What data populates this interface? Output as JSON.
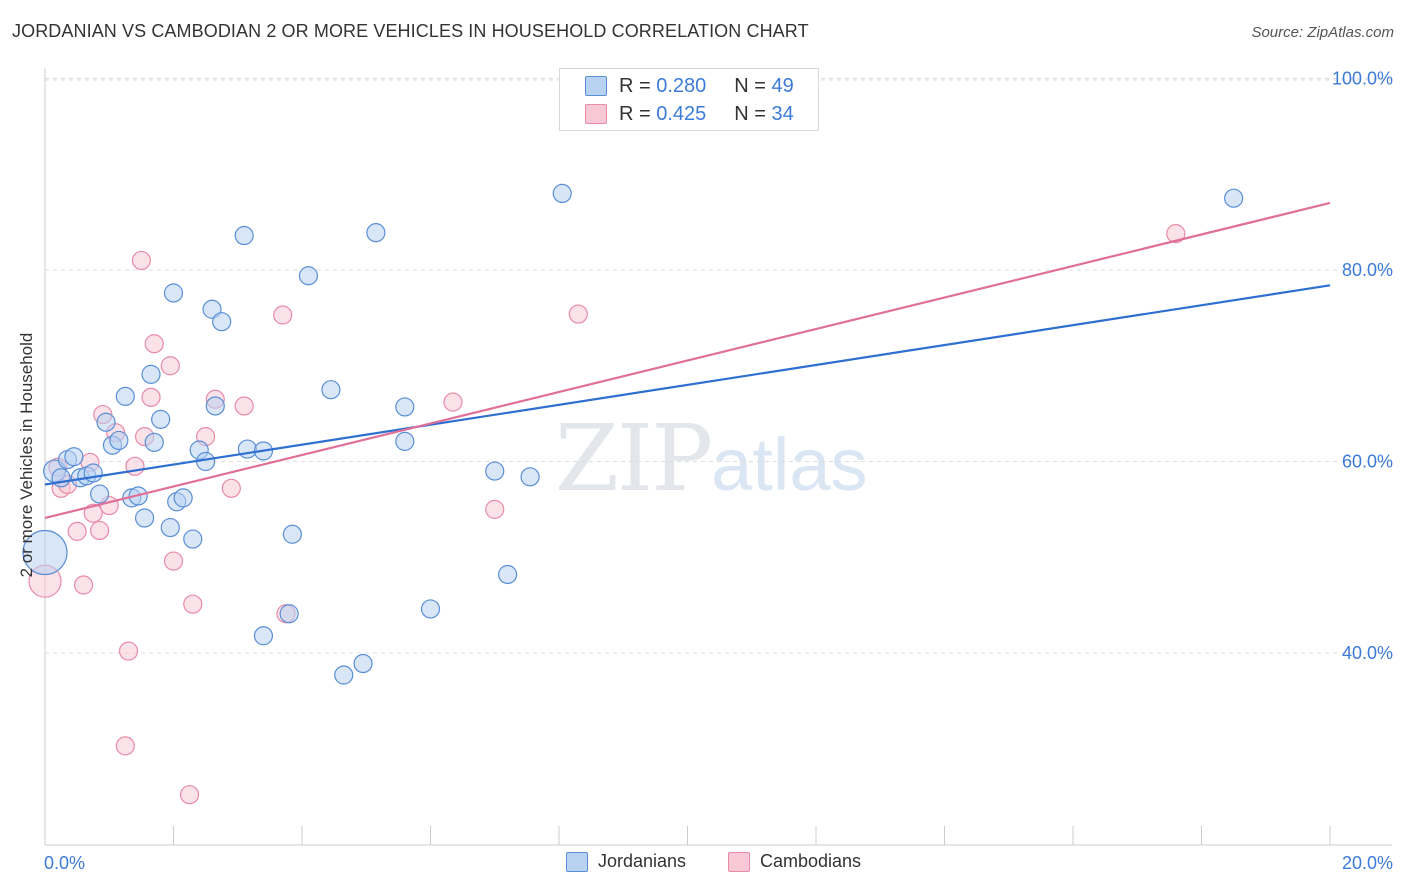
{
  "title": "JORDANIAN VS CAMBODIAN 2 OR MORE VEHICLES IN HOUSEHOLD CORRELATION CHART",
  "source": "Source: ZipAtlas.com",
  "watermark": {
    "zip": "ZIP",
    "atlas": "atlas"
  },
  "legend": {
    "rows": [
      {
        "r_label": "R = ",
        "r_value": "0.280",
        "n_label": "N = ",
        "n_value": "49"
      },
      {
        "r_label": "R = ",
        "r_value": "0.425",
        "n_label": "N = ",
        "n_value": "34"
      }
    ],
    "bottom": [
      "Jordanians",
      "Cambodians"
    ]
  },
  "colors": {
    "jordanians_fill": "#b8d2f2",
    "jordanians_stroke": "#5a8fd6",
    "jordanians_line": "#2f6fd0",
    "cambodians_fill": "#f8c8d6",
    "cambodians_stroke": "#e88aa8",
    "cambodians_line": "#e07098",
    "axis_text": "#3d7bd8",
    "grid": "#dddddd"
  },
  "chart_data": {
    "type": "scatter",
    "title": "JORDANIAN VS CAMBODIAN 2 OR MORE VEHICLES IN HOUSEHOLD CORRELATION CHART",
    "xlabel": "",
    "ylabel": "2 or more Vehicles in Household",
    "xlim": [
      0,
      20
    ],
    "ylim": [
      20,
      102
    ],
    "x_ticks": [
      {
        "value": 0,
        "label": "0.0%"
      },
      {
        "value": 20,
        "label": "20.0%"
      }
    ],
    "y_ticks": [
      {
        "value": 40,
        "label": "40.0%"
      },
      {
        "value": 60,
        "label": "60.0%"
      },
      {
        "value": 80,
        "label": "80.0%"
      },
      {
        "value": 100,
        "label": "100.0%"
      }
    ],
    "grid": true,
    "legend_position": "top-center",
    "series": [
      {
        "name": "Jordanians",
        "r": 0.28,
        "n": 49,
        "trend": {
          "x": [
            0,
            20
          ],
          "y": [
            57.6,
            78.4
          ]
        },
        "points": [
          [
            0.0,
            50.5,
            22
          ],
          [
            0.15,
            59.0,
            11
          ],
          [
            0.25,
            58.3,
            9
          ],
          [
            0.35,
            60.2,
            9
          ],
          [
            0.45,
            60.5,
            9
          ],
          [
            0.55,
            58.3,
            9
          ],
          [
            0.65,
            58.5,
            9
          ],
          [
            0.75,
            58.8,
            9
          ],
          [
            0.85,
            56.6,
            9
          ],
          [
            0.95,
            64.1,
            9
          ],
          [
            1.05,
            61.7,
            9
          ],
          [
            1.15,
            62.2,
            9
          ],
          [
            1.25,
            66.8,
            9
          ],
          [
            1.35,
            56.2,
            9
          ],
          [
            1.45,
            56.4,
            9
          ],
          [
            1.55,
            54.1,
            9
          ],
          [
            1.65,
            69.1,
            9
          ],
          [
            1.7,
            62.0,
            9
          ],
          [
            1.8,
            64.4,
            9
          ],
          [
            1.95,
            53.1,
            9
          ],
          [
            2.0,
            77.6,
            9
          ],
          [
            2.05,
            55.8,
            9
          ],
          [
            2.15,
            56.2,
            9
          ],
          [
            2.3,
            51.9,
            9
          ],
          [
            2.4,
            61.2,
            9
          ],
          [
            2.5,
            60.0,
            9
          ],
          [
            2.6,
            75.9,
            9
          ],
          [
            2.65,
            65.8,
            9
          ],
          [
            2.75,
            74.6,
            9
          ],
          [
            3.1,
            83.6,
            9
          ],
          [
            3.15,
            61.3,
            9
          ],
          [
            3.4,
            61.1,
            9
          ],
          [
            3.4,
            41.8,
            9
          ],
          [
            3.8,
            44.1,
            9
          ],
          [
            3.85,
            52.4,
            9
          ],
          [
            4.1,
            79.4,
            9
          ],
          [
            4.45,
            67.5,
            9
          ],
          [
            4.65,
            37.7,
            9
          ],
          [
            4.95,
            38.9,
            9
          ],
          [
            5.15,
            83.9,
            9
          ],
          [
            5.6,
            65.7,
            9
          ],
          [
            5.6,
            62.1,
            9
          ],
          [
            6.0,
            44.6,
            9
          ],
          [
            7.0,
            59.0,
            9
          ],
          [
            7.2,
            48.2,
            9
          ],
          [
            7.55,
            58.4,
            9
          ],
          [
            8.05,
            88.0,
            9
          ],
          [
            18.5,
            87.5,
            9
          ],
          [
            18.5,
            87.5,
            0
          ]
        ]
      },
      {
        "name": "Cambodians",
        "r": 0.425,
        "n": 34,
        "trend": {
          "x": [
            0,
            20
          ],
          "y": [
            54.1,
            87.0
          ]
        },
        "points": [
          [
            0.0,
            47.5,
            16
          ],
          [
            0.2,
            59.4,
            9
          ],
          [
            0.25,
            57.2,
            9
          ],
          [
            0.35,
            57.6,
            9
          ],
          [
            0.5,
            52.7,
            9
          ],
          [
            0.6,
            47.1,
            9
          ],
          [
            0.7,
            59.9,
            9
          ],
          [
            0.75,
            54.6,
            9
          ],
          [
            0.85,
            52.8,
            9
          ],
          [
            0.9,
            64.9,
            9
          ],
          [
            1.0,
            55.4,
            9
          ],
          [
            1.1,
            63.0,
            9
          ],
          [
            1.3,
            40.2,
            9
          ],
          [
            1.25,
            30.3,
            9
          ],
          [
            1.4,
            59.5,
            9
          ],
          [
            1.5,
            81.0,
            9
          ],
          [
            1.55,
            62.6,
            9
          ],
          [
            1.65,
            66.7,
            9
          ],
          [
            1.7,
            72.3,
            9
          ],
          [
            1.95,
            70.0,
            9
          ],
          [
            2.0,
            49.6,
            9
          ],
          [
            2.25,
            25.2,
            9
          ],
          [
            2.3,
            45.1,
            9
          ],
          [
            2.5,
            62.6,
            9
          ],
          [
            2.65,
            66.5,
            9
          ],
          [
            2.9,
            57.2,
            9
          ],
          [
            3.1,
            65.8,
            9
          ],
          [
            3.7,
            75.3,
            9
          ],
          [
            3.75,
            44.1,
            9
          ],
          [
            6.35,
            66.2,
            9
          ],
          [
            7.0,
            55.0,
            9
          ],
          [
            8.3,
            75.4,
            9
          ],
          [
            17.6,
            83.8,
            9
          ],
          [
            17.6,
            83.8,
            0
          ]
        ]
      }
    ]
  }
}
